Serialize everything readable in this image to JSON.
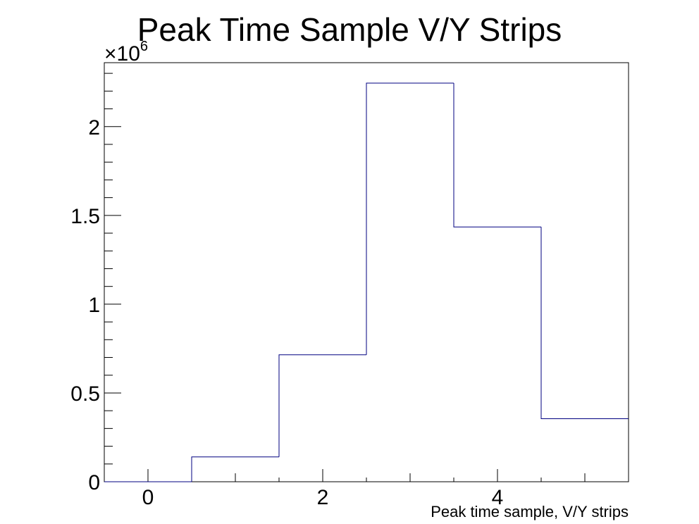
{
  "chart_data": {
    "type": "bar",
    "style": "histogram-step",
    "title": "Peak Time Sample V/Y Strips",
    "xlabel": "Peak time sample, V/Y strips",
    "ylabel": "",
    "y_multiplier_base": "×10",
    "y_multiplier_exponent": "6",
    "xlim": [
      -0.5,
      5.5
    ],
    "ylim": [
      0,
      2.36
    ],
    "x_major_ticks": [
      0,
      2,
      4
    ],
    "x_tick_labels": [
      "0",
      "2",
      "4"
    ],
    "y_major_ticks": [
      0,
      0.5,
      1,
      1.5,
      2
    ],
    "y_tick_labels": [
      "0",
      "0.5",
      "1",
      "1.5",
      "2"
    ],
    "bin_edges": [
      -0.5,
      0.5,
      1.5,
      2.5,
      3.5,
      4.5,
      5.5
    ],
    "values": [
      0,
      0.14,
      0.715,
      2.245,
      1.435,
      0.355
    ],
    "line_color": "#000080",
    "grid": false,
    "legend": "none"
  }
}
